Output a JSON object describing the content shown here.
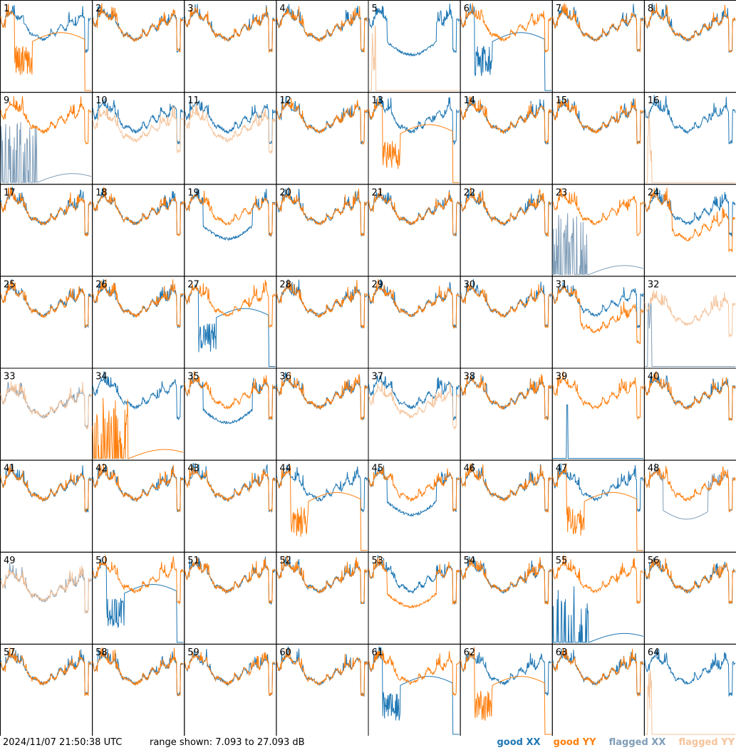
{
  "footer": {
    "timestamp": "2024/11/07 21:50:38 UTC",
    "range": "range shown: 7.093 to 27.093 dB"
  },
  "legend": {
    "good_xx": "good XX",
    "good_yy": "good YY",
    "flagged_xx": "flagged XX",
    "flagged_yy": "flagged YY"
  },
  "colors": {
    "good_xx": "#1f77b4",
    "good_yy": "#ff7f0e",
    "flagged_xx": "#7f9db8",
    "flagged_yy": "#f5c39a"
  },
  "chart_data": {
    "type": "line",
    "grid": "8x8 small multiples",
    "ylim": [
      7.093,
      27.093
    ],
    "units": "dB",
    "panels": [
      {
        "id": 1,
        "xx": "normal",
        "yy": "drop"
      },
      {
        "id": 2,
        "xx": "normal",
        "yy": "normal"
      },
      {
        "id": 3,
        "xx": "normal",
        "yy": "normal"
      },
      {
        "id": 4,
        "xx": "normal",
        "yy": "normal"
      },
      {
        "id": 5,
        "xx": "dip",
        "yy": "flagged-low"
      },
      {
        "id": 6,
        "xx": "drop",
        "yy": "normal"
      },
      {
        "id": 7,
        "xx": "normal",
        "yy": "normal"
      },
      {
        "id": 8,
        "xx": "normal",
        "yy": "normal"
      },
      {
        "id": 9,
        "xx": "spiky-low-flagged",
        "yy": "normal"
      },
      {
        "id": 10,
        "xx": "normal",
        "yy": "flagged-high"
      },
      {
        "id": 11,
        "xx": "normal",
        "yy": "flagged-high"
      },
      {
        "id": 12,
        "xx": "normal",
        "yy": "normal"
      },
      {
        "id": 13,
        "xx": "normal",
        "yy": "drop"
      },
      {
        "id": 14,
        "xx": "normal",
        "yy": "normal"
      },
      {
        "id": 15,
        "xx": "normal",
        "yy": "normal"
      },
      {
        "id": 16,
        "xx": "normal",
        "yy": "flagged-low"
      },
      {
        "id": 17,
        "xx": "normal",
        "yy": "normal"
      },
      {
        "id": 18,
        "xx": "normal",
        "yy": "normal"
      },
      {
        "id": 19,
        "xx": "dip",
        "yy": "normal"
      },
      {
        "id": 20,
        "xx": "normal",
        "yy": "normal"
      },
      {
        "id": 21,
        "xx": "normal",
        "yy": "normal"
      },
      {
        "id": 22,
        "xx": "normal",
        "yy": "normal"
      },
      {
        "id": 23,
        "xx": "spiky-low-flagged",
        "yy": "normal"
      },
      {
        "id": 24,
        "xx": "normal",
        "yy": "offset"
      },
      {
        "id": 25,
        "xx": "normal",
        "yy": "normal"
      },
      {
        "id": 26,
        "xx": "normal",
        "yy": "normal"
      },
      {
        "id": 27,
        "xx": "drop",
        "yy": "normal"
      },
      {
        "id": 28,
        "xx": "normal",
        "yy": "normal"
      },
      {
        "id": 29,
        "xx": "normal",
        "yy": "normal"
      },
      {
        "id": 30,
        "xx": "normal",
        "yy": "normal"
      },
      {
        "id": 31,
        "xx": "normal",
        "yy": "offset"
      },
      {
        "id": 32,
        "xx": "flagged-low",
        "yy": "flagged-high"
      },
      {
        "id": 33,
        "xx": "flagged-high",
        "yy": "flagged-high"
      },
      {
        "id": 34,
        "xx": "normal",
        "yy": "spiky-low"
      },
      {
        "id": 35,
        "xx": "dip",
        "yy": "normal"
      },
      {
        "id": 36,
        "xx": "normal",
        "yy": "normal"
      },
      {
        "id": 37,
        "xx": "normal",
        "yy": "flagged-high"
      },
      {
        "id": 38,
        "xx": "normal",
        "yy": "normal"
      },
      {
        "id": 39,
        "xx": "spike",
        "yy": "normal"
      },
      {
        "id": 40,
        "xx": "normal",
        "yy": "normal"
      },
      {
        "id": 41,
        "xx": "normal",
        "yy": "normal"
      },
      {
        "id": 42,
        "xx": "normal",
        "yy": "normal"
      },
      {
        "id": 43,
        "xx": "normal",
        "yy": "normal"
      },
      {
        "id": 44,
        "xx": "normal",
        "yy": "drop"
      },
      {
        "id": 45,
        "xx": "dip",
        "yy": "normal"
      },
      {
        "id": 46,
        "xx": "normal",
        "yy": "normal"
      },
      {
        "id": 47,
        "xx": "normal",
        "yy": "drop"
      },
      {
        "id": 48,
        "xx": "flagged-dip",
        "yy": "normal"
      },
      {
        "id": 49,
        "xx": "flagged-high",
        "yy": "flagged-high"
      },
      {
        "id": 50,
        "xx": "drop",
        "yy": "normal"
      },
      {
        "id": 51,
        "xx": "normal",
        "yy": "normal"
      },
      {
        "id": 52,
        "xx": "normal",
        "yy": "normal"
      },
      {
        "id": 53,
        "xx": "normal",
        "yy": "dip"
      },
      {
        "id": 54,
        "xx": "normal",
        "yy": "normal"
      },
      {
        "id": 55,
        "xx": "spiky-low",
        "yy": "normal"
      },
      {
        "id": 56,
        "xx": "normal",
        "yy": "normal"
      },
      {
        "id": 57,
        "xx": "normal",
        "yy": "normal"
      },
      {
        "id": 58,
        "xx": "normal",
        "yy": "normal"
      },
      {
        "id": 59,
        "xx": "normal",
        "yy": "normal"
      },
      {
        "id": 60,
        "xx": "normal",
        "yy": "normal"
      },
      {
        "id": 61,
        "xx": "drop",
        "yy": "normal"
      },
      {
        "id": 62,
        "xx": "normal",
        "yy": "drop"
      },
      {
        "id": 63,
        "xx": "normal",
        "yy": "normal"
      },
      {
        "id": 64,
        "xx": "normal",
        "yy": "flagged-low"
      }
    ]
  }
}
